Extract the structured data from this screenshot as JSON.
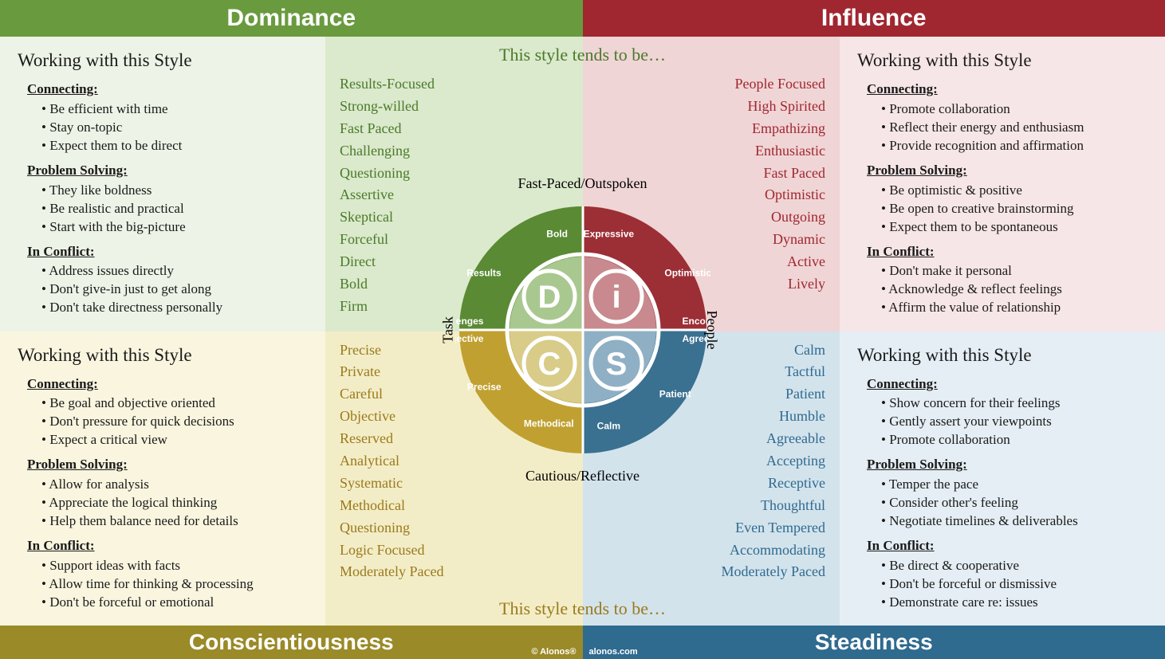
{
  "colors": {
    "d_header": "#6a9a3e",
    "i_header": "#a02730",
    "c_footer": "#9a8a28",
    "s_footer": "#2f6a8f",
    "d_bg_light": "#edf3e6",
    "d_bg_mid": "#dbe9cc",
    "i_bg_light": "#f7e6e7",
    "i_bg_mid": "#f0d5d6",
    "c_bg_light": "#f9f5df",
    "c_bg_mid": "#f3edc7",
    "s_bg_light": "#e4eef4",
    "s_bg_mid": "#d3e3ec",
    "d_text": "#4a7a2a",
    "i_text": "#a02730",
    "c_text": "#9a7a1c",
    "s_text": "#2f6a8f",
    "d_dark": "#5a8a34",
    "i_dark": "#9c2e35",
    "c_dark": "#c0a030",
    "s_dark": "#3a7090",
    "d_inner": "#a8c890",
    "i_inner": "#c88a8e",
    "c_inner": "#d8cc88",
    "s_inner": "#8fb0c4",
    "body_text": "#1a1a1a",
    "tends_d": "#4a7a2a",
    "tends_c": "#9a7a1c"
  },
  "header": {
    "left": "Dominance",
    "right": "Influence"
  },
  "footer": {
    "left": "Conscientiousness",
    "right": "Steadiness"
  },
  "credit": {
    "brand": "© Alonos®",
    "site": "alonos.com"
  },
  "tends": {
    "top": "This style tends to be…",
    "bottom": "This style tends to be…"
  },
  "axes": {
    "top": "Fast-Paced/Outspoken",
    "bottom": "Cautious/Reflective",
    "left": "Task",
    "right": "People"
  },
  "working_title": "Working with this Style",
  "subheads": {
    "connecting": "Connecting:",
    "problem": "Problem Solving:",
    "conflict": "In Conflict:"
  },
  "quadrants": {
    "D": {
      "connecting": [
        "Be efficient with time",
        "Stay on-topic",
        "Expect them to be direct"
      ],
      "problem": [
        "They like boldness",
        "Be realistic and practical",
        "Start with the big-picture"
      ],
      "conflict": [
        "Address issues directly",
        "Don't give-in just to get along",
        "Don't take directness personally"
      ],
      "traits": [
        "Results-Focused",
        "Strong-willed",
        "Fast Paced",
        "Challenging",
        "Questioning",
        "Assertive",
        "Skeptical",
        "Forceful",
        "Direct",
        "Bold",
        "Firm"
      ],
      "wheel_words": [
        "Bold",
        "Results",
        "Challenges"
      ]
    },
    "I": {
      "connecting": [
        "Promote collaboration",
        "Reflect their energy and enthusiasm",
        "Provide recognition and affirmation"
      ],
      "problem": [
        "Be optimistic & positive",
        "Be open to creative brainstorming",
        "Expect them to be spontaneous"
      ],
      "conflict": [
        "Don't make it personal",
        "Acknowledge & reflect feelings",
        "Affirm the value of relationship"
      ],
      "traits": [
        "People Focused",
        "High Spirited",
        "Empathizing",
        "Enthusiastic",
        "Fast Paced",
        "Optimistic",
        "Outgoing",
        "Dynamic",
        "Active",
        "Lively"
      ],
      "wheel_words": [
        "Expressive",
        "Optimistic",
        "Encouraging"
      ]
    },
    "C": {
      "connecting": [
        "Be goal and objective oriented",
        "Don't pressure for quick decisions",
        "Expect a critical view"
      ],
      "problem": [
        "Allow for analysis",
        "Appreciate the logical thinking",
        "Help them balance need for details"
      ],
      "conflict": [
        "Support ideas with facts",
        "Allow time for thinking & processing",
        "Don't be forceful or emotional"
      ],
      "traits": [
        "Precise",
        "Private",
        "Careful",
        "Objective",
        "Reserved",
        "Analytical",
        "Systematic",
        "Methodical",
        "Questioning",
        "Logic Focused",
        "Moderately Paced"
      ],
      "wheel_words": [
        "Objective",
        "Precise",
        "Methodical"
      ]
    },
    "S": {
      "connecting": [
        "Show concern for their feelings",
        "Gently assert your viewpoints",
        "Promote collaboration"
      ],
      "problem": [
        "Temper the pace",
        "Consider other's feeling",
        "Negotiate timelines & deliverables"
      ],
      "conflict": [
        "Be direct & cooperative",
        "Don't be forceful or dismissive",
        "Demonstrate care re: issues"
      ],
      "traits": [
        "Calm",
        "Tactful",
        "Patient",
        "Humble",
        "Agreeable",
        "Accepting",
        "Receptive",
        "Thoughtful",
        "Even Tempered",
        "Accommodating",
        "Moderately Paced"
      ],
      "wheel_words": [
        "Agreeable",
        "Patient",
        "Calm"
      ]
    }
  },
  "disc_letters": {
    "D": "D",
    "I": "i",
    "C": "C",
    "S": "S"
  }
}
